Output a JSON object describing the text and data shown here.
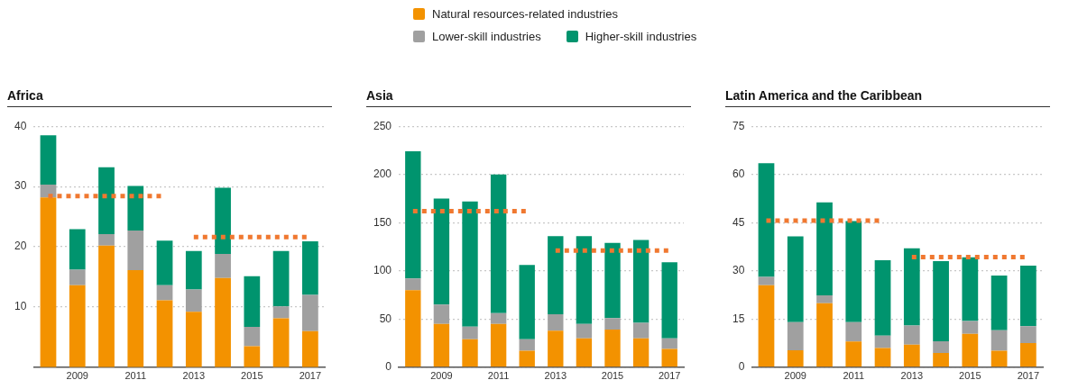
{
  "chart_data": [
    {
      "type": "bar",
      "title": "Africa",
      "stacked": true,
      "legend": "top",
      "grid": "y",
      "categories": [
        null,
        "2009",
        null,
        "2011",
        null,
        "2013",
        null,
        "2015",
        null,
        "2017"
      ],
      "ylim": [
        0,
        40
      ],
      "yticks": [
        10,
        20,
        30,
        40
      ],
      "series": [
        {
          "name": "Natural resources-related industries",
          "color": "#f39200",
          "values": [
            28.2,
            13.6,
            20.2,
            16.1,
            11.1,
            9.2,
            14.8,
            3.5,
            8.1,
            6.0
          ]
        },
        {
          "name": "Lower-skill industries",
          "color": "#a0a0a0",
          "values": [
            2.1,
            2.6,
            1.9,
            6.6,
            2.5,
            3.7,
            4.0,
            3.2,
            2.0,
            6.0
          ]
        },
        {
          "name": "Higher-skill industries",
          "color": "#00946e",
          "values": [
            8.2,
            6.7,
            11.1,
            7.4,
            7.4,
            6.4,
            11.0,
            8.4,
            9.2,
            8.9
          ]
        },
        {
          "type": "line",
          "color": "#f07830",
          "line_style": "dotted",
          "marker": "none",
          "values": [
            28.4,
            28.4,
            28.4,
            28.4,
            28.4,
            null,
            null,
            null,
            null,
            null
          ]
        },
        {
          "type": "line",
          "color": "#f07830",
          "line_style": "dotted",
          "marker": "none",
          "values": [
            null,
            null,
            null,
            null,
            null,
            21.6,
            21.6,
            21.6,
            21.6,
            21.6
          ]
        }
      ]
    },
    {
      "type": "bar",
      "title": "Asia",
      "stacked": true,
      "grid": "y",
      "categories": [
        null,
        "2009",
        null,
        "2011",
        null,
        "2013",
        null,
        "2015",
        null,
        "2017"
      ],
      "ylim": [
        0,
        250
      ],
      "yticks": [
        0,
        50,
        100,
        150,
        200,
        250
      ],
      "series": [
        {
          "color": "#f39200",
          "values": [
            80,
            45,
            29,
            45,
            17,
            38,
            30,
            39,
            30,
            19
          ]
        },
        {
          "color": "#a0a0a0",
          "values": [
            12,
            20,
            13,
            11,
            12,
            17,
            15,
            12,
            16,
            11
          ]
        },
        {
          "color": "#00946e",
          "values": [
            132,
            110,
            130,
            144,
            77,
            81,
            91,
            78,
            86,
            79
          ]
        },
        {
          "type": "line",
          "color": "#f07830",
          "line_style": "dotted",
          "marker": "none",
          "values": [
            162,
            162,
            162,
            162,
            162,
            null,
            null,
            null,
            null,
            null
          ]
        },
        {
          "type": "line",
          "color": "#f07830",
          "line_style": "dotted",
          "marker": "none",
          "values": [
            null,
            null,
            null,
            null,
            null,
            121,
            121,
            121,
            121,
            121
          ]
        }
      ]
    },
    {
      "type": "bar",
      "title": "Latin America and the Caribbean",
      "stacked": true,
      "grid": "y",
      "categories": [
        null,
        "2009",
        null,
        "2011",
        null,
        "2013",
        null,
        "2015",
        null,
        "2017"
      ],
      "ylim": [
        0,
        75
      ],
      "yticks": [
        0,
        15,
        30,
        45,
        60,
        75
      ],
      "series": [
        {
          "color": "#f39200",
          "values": [
            25.5,
            5.3,
            19.9,
            8.0,
            6.0,
            7.0,
            4.4,
            10.4,
            5.1,
            7.5
          ]
        },
        {
          "color": "#a0a0a0",
          "values": [
            2.6,
            8.7,
            2.5,
            6.0,
            3.8,
            6.0,
            3.7,
            4.0,
            6.4,
            5.3
          ]
        },
        {
          "color": "#00946e",
          "values": [
            35.4,
            26.7,
            28.9,
            31.5,
            23.5,
            24.0,
            24.9,
            19.8,
            17.0,
            18.8
          ]
        },
        {
          "type": "line",
          "color": "#f07830",
          "line_style": "dotted",
          "marker": "none",
          "values": [
            45.6,
            45.6,
            45.6,
            45.6,
            45.6,
            null,
            null,
            null,
            null,
            null
          ]
        },
        {
          "type": "line",
          "color": "#f07830",
          "line_style": "dotted",
          "marker": "none",
          "values": [
            null,
            null,
            null,
            null,
            null,
            34.3,
            34.3,
            34.3,
            34.3,
            34.3
          ]
        }
      ]
    }
  ]
}
